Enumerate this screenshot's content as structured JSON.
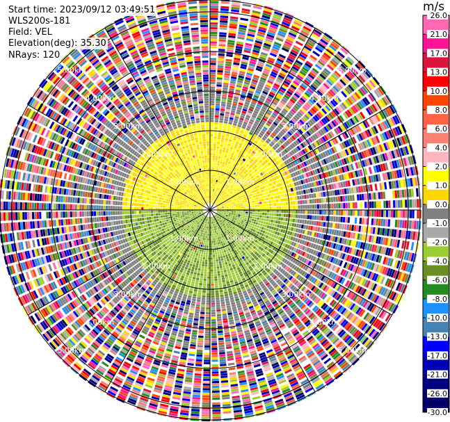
{
  "header": {
    "start_time": "Start time: 2023/09/12 03:49:51",
    "instrument": "WLS200s-181",
    "field": "Field: VEL",
    "elevation": "Elevation(deg): 35.30",
    "nrays": "NRays: 120"
  },
  "colorbar": {
    "units": "m/s",
    "colors": [
      "#000066",
      "#000080",
      "#0000b4",
      "#0000ff",
      "#4682b4",
      "#1e90ff",
      "#228b22",
      "#6b8e23",
      "#9acd32",
      "#a9a9a9",
      "#808080",
      "#ffd700",
      "#ffff00",
      "#ffb6c1",
      "#fa8072",
      "#ff6347",
      "#ff4500",
      "#ff0000",
      "#dc143c",
      "#ff1493",
      "#ff69b4"
    ],
    "tick_labels": [
      "-30.0",
      "-26.0",
      "-21.0",
      "-17.0",
      "-13.0",
      "-10.0",
      "-8.0",
      "-6.0",
      "-4.0",
      "-2.0",
      "-1.0",
      "0.0",
      "1.0",
      "2.0",
      "4.0",
      "6.0",
      "8.0",
      "10.0",
      "13.0",
      "17.0",
      "21.0",
      "26.0"
    ]
  },
  "chart_data": {
    "type": "ppi",
    "field": "VEL",
    "units": "m/s",
    "nrays": 120,
    "elevation_deg": 35.3,
    "range_rings_km": [
      1.0,
      2.0,
      3.0,
      4.0,
      5.0
    ],
    "range_ring_labels": [
      "1.00km",
      "2.00km",
      "3.00km",
      "4.00km",
      "5.00km"
    ],
    "spokes_deg": [
      0,
      30,
      60,
      90,
      120,
      150,
      180,
      210,
      240,
      270,
      300,
      330
    ],
    "max_range_km": 5.3,
    "regions": [
      {
        "description": "north half near field",
        "range_km": [
          0,
          2.5
        ],
        "value_ms": 1.5
      },
      {
        "description": "south half near field",
        "range_km": [
          0,
          2.5
        ],
        "value_ms": -2.0
      },
      {
        "description": "mid ring",
        "range_km": [
          2.5,
          3.5
        ],
        "value_ms": 0.0
      },
      {
        "description": "outer noise",
        "range_km": [
          3.5,
          5.3
        ],
        "value_ms": "noise"
      }
    ]
  }
}
